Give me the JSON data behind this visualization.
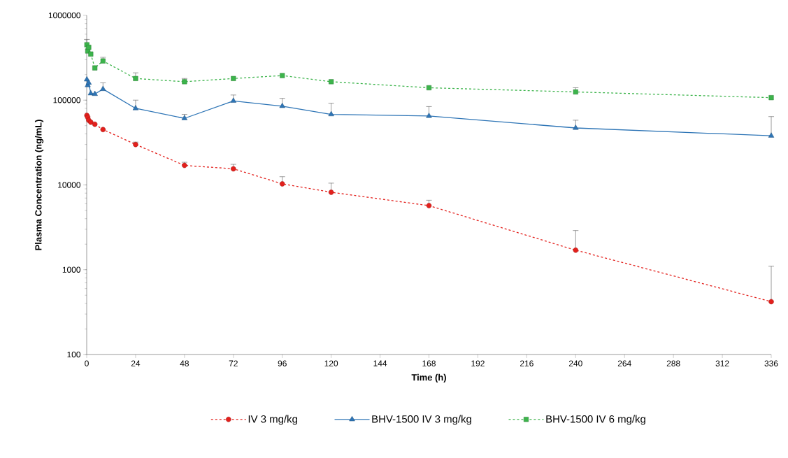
{
  "chart_data": {
    "type": "line",
    "xlabel": "Time (h)",
    "ylabel": "Plasma Concentration (ng/mL)",
    "xlim": [
      0,
      336
    ],
    "xticks": [
      0,
      24,
      48,
      72,
      96,
      120,
      144,
      168,
      192,
      216,
      240,
      264,
      288,
      312,
      336
    ],
    "ylim": [
      100,
      1000000
    ],
    "yticks": [
      100,
      1000,
      10000,
      100000,
      1000000
    ],
    "log": "y",
    "grid": false,
    "legend": "bottom",
    "x": [
      0.083,
      0.5,
      1,
      2,
      4,
      8,
      24,
      48,
      72,
      96,
      120,
      168,
      240,
      336
    ],
    "series": [
      {
        "name": "IV 3 mg/kg",
        "color": "#e3201c",
        "marker": "circle",
        "line_style": "dashed",
        "values": [
          66000,
          63000,
          58000,
          55000,
          52000,
          45000,
          30000,
          17000,
          15500,
          10300,
          8200,
          5700,
          1700,
          420
        ],
        "errors": [
          null,
          null,
          null,
          null,
          null,
          null,
          [
            30000,
            32000
          ],
          [
            17000,
            18500
          ],
          [
            15500,
            17500
          ],
          [
            10300,
            12500
          ],
          [
            8200,
            10500
          ],
          [
            5700,
            6600
          ],
          [
            1700,
            2900
          ],
          [
            420,
            1100
          ]
        ]
      },
      {
        "name": "BHV-1500 IV 3 mg/kg",
        "color": "#2e75b6",
        "marker": "triangle",
        "line_style": "solid",
        "values": [
          175000,
          150000,
          160000,
          120000,
          118000,
          135000,
          80000,
          61000,
          98000,
          85000,
          68000,
          65000,
          47000,
          38000
        ],
        "errors": [
          null,
          null,
          null,
          null,
          null,
          [
            135000,
            160000
          ],
          [
            80000,
            100000
          ],
          [
            61000,
            68000
          ],
          [
            98000,
            115000
          ],
          [
            85000,
            105000
          ],
          [
            68000,
            92000
          ],
          [
            65000,
            84000
          ],
          [
            47000,
            58000
          ],
          [
            38000,
            64000
          ]
        ]
      },
      {
        "name": "BHV-1500 IV 6 mg/kg",
        "color": "#3cb44b",
        "marker": "square",
        "line_style": "dashed",
        "values": [
          450000,
          380000,
          420000,
          350000,
          240000,
          290000,
          180000,
          165000,
          180000,
          195000,
          165000,
          140000,
          125000,
          107000
        ],
        "errors": [
          [
            450000,
            520000
          ],
          null,
          null,
          null,
          null,
          [
            290000,
            320000
          ],
          [
            180000,
            210000
          ],
          [
            165000,
            180000
          ],
          null,
          null,
          null,
          null,
          [
            125000,
            140000
          ],
          null
        ]
      }
    ]
  }
}
